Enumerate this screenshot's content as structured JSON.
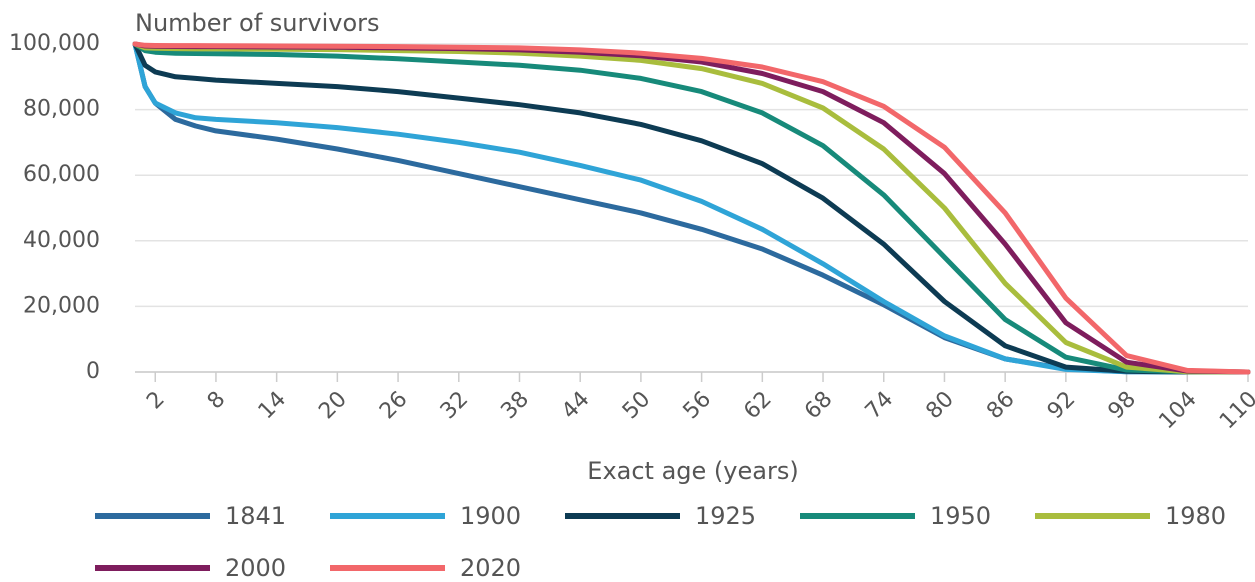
{
  "chart_data": {
    "type": "line",
    "title": "Number of survivors",
    "xlabel": "Exact age (years)",
    "x": [
      0,
      1,
      2,
      4,
      6,
      8,
      14,
      20,
      26,
      32,
      38,
      44,
      50,
      56,
      62,
      68,
      74,
      80,
      86,
      92,
      98,
      104,
      110
    ],
    "series": [
      {
        "name": "1841",
        "color": "#2c6a9e",
        "values": [
          100000,
          87000,
          82000,
          77000,
          75000,
          73500,
          71000,
          68000,
          64500,
          60500,
          56500,
          52500,
          48500,
          43500,
          37500,
          29500,
          20500,
          10500,
          4000,
          1000,
          100,
          0,
          0
        ]
      },
      {
        "name": "1900",
        "color": "#2fa4d7",
        "values": [
          100000,
          87000,
          82000,
          79000,
          77500,
          77000,
          76000,
          74500,
          72500,
          70000,
          67000,
          63000,
          58500,
          52000,
          43500,
          33000,
          21500,
          11000,
          4000,
          800,
          100,
          0,
          0
        ]
      },
      {
        "name": "1925",
        "color": "#0d3b53",
        "values": [
          100000,
          93500,
          91500,
          90000,
          89500,
          89000,
          88000,
          87000,
          85500,
          83500,
          81500,
          79000,
          75500,
          70500,
          63500,
          53000,
          39000,
          21500,
          8000,
          1500,
          200,
          0,
          0
        ]
      },
      {
        "name": "1950",
        "color": "#178a7a",
        "values": [
          100000,
          98000,
          97500,
          97200,
          97100,
          97000,
          96800,
          96300,
          95500,
          94500,
          93500,
          92000,
          89500,
          85500,
          79000,
          69000,
          54000,
          35000,
          16000,
          4500,
          600,
          50,
          0
        ]
      },
      {
        "name": "1980",
        "color": "#a9bd3d",
        "values": [
          100000,
          98800,
          98700,
          98600,
          98500,
          98500,
          98400,
          98300,
          98000,
          97700,
          97200,
          96300,
          95000,
          92500,
          88000,
          80500,
          68000,
          50000,
          27000,
          9000,
          1500,
          100,
          0
        ]
      },
      {
        "name": "2000",
        "color": "#7e1d5d",
        "values": [
          100000,
          99400,
          99300,
          99250,
          99200,
          99200,
          99100,
          99000,
          98800,
          98600,
          98200,
          97500,
          96400,
          94500,
          91000,
          85500,
          76000,
          60500,
          39000,
          15000,
          3000,
          300,
          0
        ]
      },
      {
        "name": "2020",
        "color": "#f2676a",
        "values": [
          100000,
          99600,
          99550,
          99500,
          99500,
          99450,
          99400,
          99300,
          99200,
          99000,
          98800,
          98200,
          97200,
          95600,
          93000,
          88500,
          81000,
          68500,
          48500,
          22500,
          5000,
          500,
          0
        ]
      }
    ],
    "xlim": [
      0,
      110
    ],
    "ylim": [
      0,
      100000
    ],
    "xticks": [
      2,
      8,
      14,
      20,
      26,
      32,
      38,
      44,
      50,
      56,
      62,
      68,
      74,
      80,
      86,
      92,
      98,
      104,
      110
    ],
    "yticks": [
      0,
      {
        "value": 20000,
        "label": "20,000"
      },
      {
        "value": 40000,
        "label": "40,000"
      },
      {
        "value": 60000,
        "label": "60,000"
      },
      {
        "value": 80000,
        "label": "80,000"
      },
      {
        "value": 100000,
        "label": "100,000"
      }
    ],
    "grid": true
  }
}
